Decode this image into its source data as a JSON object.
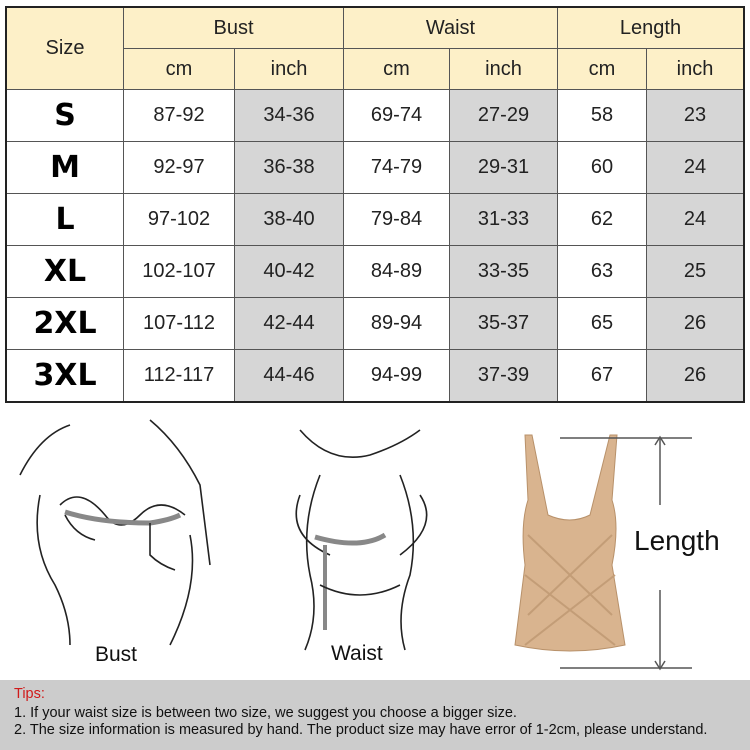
{
  "table": {
    "size_header": "Size",
    "groups": [
      "Bust",
      "Waist",
      "Length"
    ],
    "units": [
      "cm",
      "inch",
      "cm",
      "inch",
      "cm",
      "inch"
    ],
    "rows": [
      {
        "size": "S",
        "values": [
          "87-92",
          "34-36",
          "69-74",
          "27-29",
          "58",
          "23"
        ]
      },
      {
        "size": "M",
        "values": [
          "92-97",
          "36-38",
          "74-79",
          "29-31",
          "60",
          "24"
        ]
      },
      {
        "size": "L",
        "values": [
          "97-102",
          "38-40",
          "79-84",
          "31-33",
          "62",
          "24"
        ]
      },
      {
        "size": "XL",
        "values": [
          "102-107",
          "40-42",
          "84-89",
          "33-35",
          "63",
          "25"
        ]
      },
      {
        "size": "2XL",
        "values": [
          "107-112",
          "42-44",
          "89-94",
          "35-37",
          "65",
          "26"
        ]
      },
      {
        "size": "3XL",
        "values": [
          "112-117",
          "44-46",
          "94-99",
          "37-39",
          "67",
          "26"
        ]
      }
    ],
    "header_color": "#fdf0c8",
    "inch_cell_color": "#d6d6d6"
  },
  "figures": {
    "bust_label": "Bust",
    "waist_label": "Waist",
    "length_label": "Length",
    "garment_color": "#d9b48f"
  },
  "tips": {
    "title": "Tips:",
    "items": [
      "1. If your waist size is between two size, we suggest you choose a bigger size.",
      "2. The size information is measured by hand. The product size may have error of 1-2cm, please understand."
    ]
  }
}
